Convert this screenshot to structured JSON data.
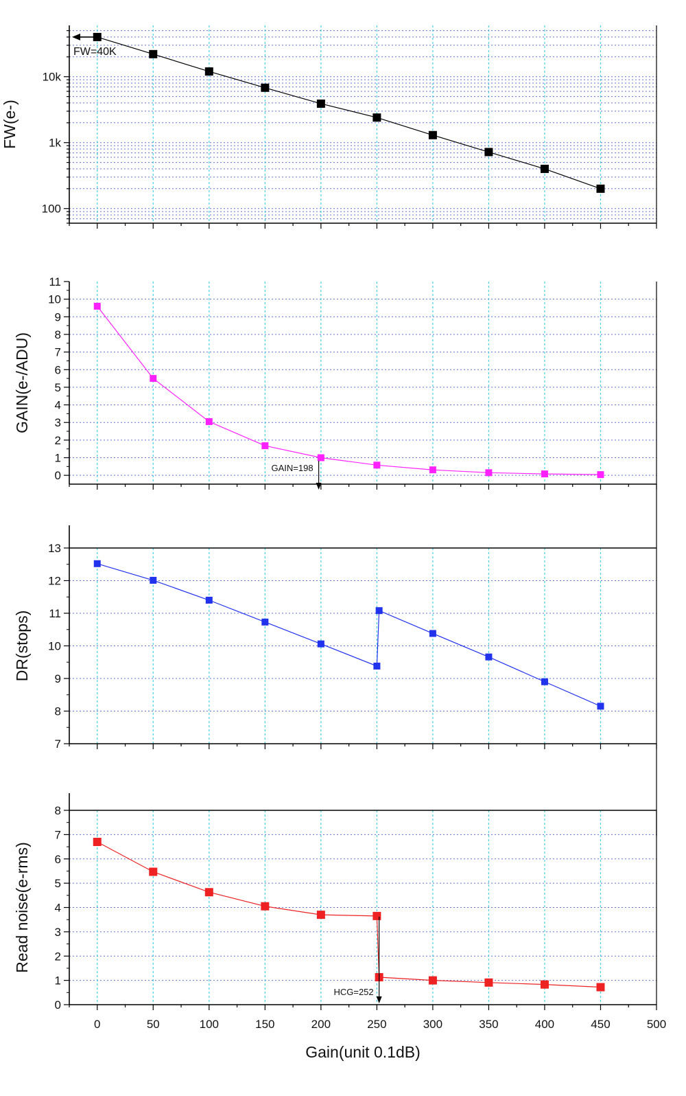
{
  "chart_data": [
    {
      "type": "line",
      "x": [
        0,
        50,
        100,
        150,
        200,
        250,
        300,
        350,
        400,
        450
      ],
      "series": [
        {
          "values": [
            40000,
            22000,
            12000,
            6800,
            3900,
            2400,
            1300,
            720,
            400,
            200
          ],
          "color": "#000000"
        }
      ],
      "xlabel": "",
      "ylabel": "FW(e-)",
      "xlim": [
        -25,
        500
      ],
      "ylim": [
        60,
        60000
      ],
      "yscale": "log",
      "ytick_labels": [
        {
          "value": 100,
          "label": "100"
        },
        {
          "value": 1000,
          "label": "1k"
        },
        {
          "value": 10000,
          "label": "10k"
        }
      ],
      "annotations": [
        {
          "text": "FW=40K",
          "arrow": "left",
          "x": 0,
          "y": 40000
        }
      ],
      "grid": true
    },
    {
      "type": "line",
      "x": [
        0,
        50,
        100,
        150,
        200,
        250,
        300,
        350,
        400,
        450
      ],
      "series": [
        {
          "values": [
            9.6,
            5.5,
            3.05,
            1.68,
            1.0,
            0.58,
            0.31,
            0.15,
            0.08,
            0.04
          ],
          "color": "#ff22ff"
        }
      ],
      "xlabel": "",
      "ylabel": "GAIN(e-/ADU)",
      "xlim": [
        -25,
        500
      ],
      "ylim": [
        -0.5,
        11
      ],
      "yticks": [
        0,
        1,
        2,
        3,
        4,
        5,
        6,
        7,
        8,
        9,
        10,
        11
      ],
      "annotations": [
        {
          "text": "GAIN=198",
          "arrow": "down",
          "x": 198
        }
      ],
      "grid": true
    },
    {
      "type": "line",
      "x": [
        0,
        50,
        100,
        150,
        200,
        250,
        252,
        300,
        350,
        400,
        450
      ],
      "series": [
        {
          "values": [
            12.52,
            12.01,
            11.4,
            10.73,
            10.06,
            9.38,
            11.08,
            10.38,
            9.66,
            8.9,
            8.15
          ],
          "color": "#2233ee"
        }
      ],
      "xlabel": "",
      "ylabel": "DR(stops)",
      "xlim": [
        -25,
        500
      ],
      "ylim": [
        7,
        13
      ],
      "yticks": [
        7,
        8,
        9,
        10,
        11,
        12,
        13
      ],
      "grid": true
    },
    {
      "type": "line",
      "x": [
        0,
        50,
        100,
        150,
        200,
        250,
        252,
        300,
        350,
        400,
        450
      ],
      "series": [
        {
          "values": [
            6.7,
            5.47,
            4.63,
            4.05,
            3.7,
            3.65,
            1.13,
            1.0,
            0.91,
            0.83,
            0.72
          ],
          "color": "#ee2222"
        }
      ],
      "xlabel": "Gain(unit 0.1dB)",
      "ylabel": "Read noise(e-rms)",
      "xlim": [
        -25,
        500
      ],
      "ylim": [
        0,
        8
      ],
      "yticks": [
        0,
        1,
        2,
        3,
        4,
        5,
        6,
        7,
        8
      ],
      "xticks": [
        0,
        50,
        100,
        150,
        200,
        250,
        300,
        350,
        400,
        450,
        500
      ],
      "annotations": [
        {
          "text": "HCG=252",
          "arrow": "down",
          "x": 252
        }
      ],
      "grid": true
    }
  ]
}
